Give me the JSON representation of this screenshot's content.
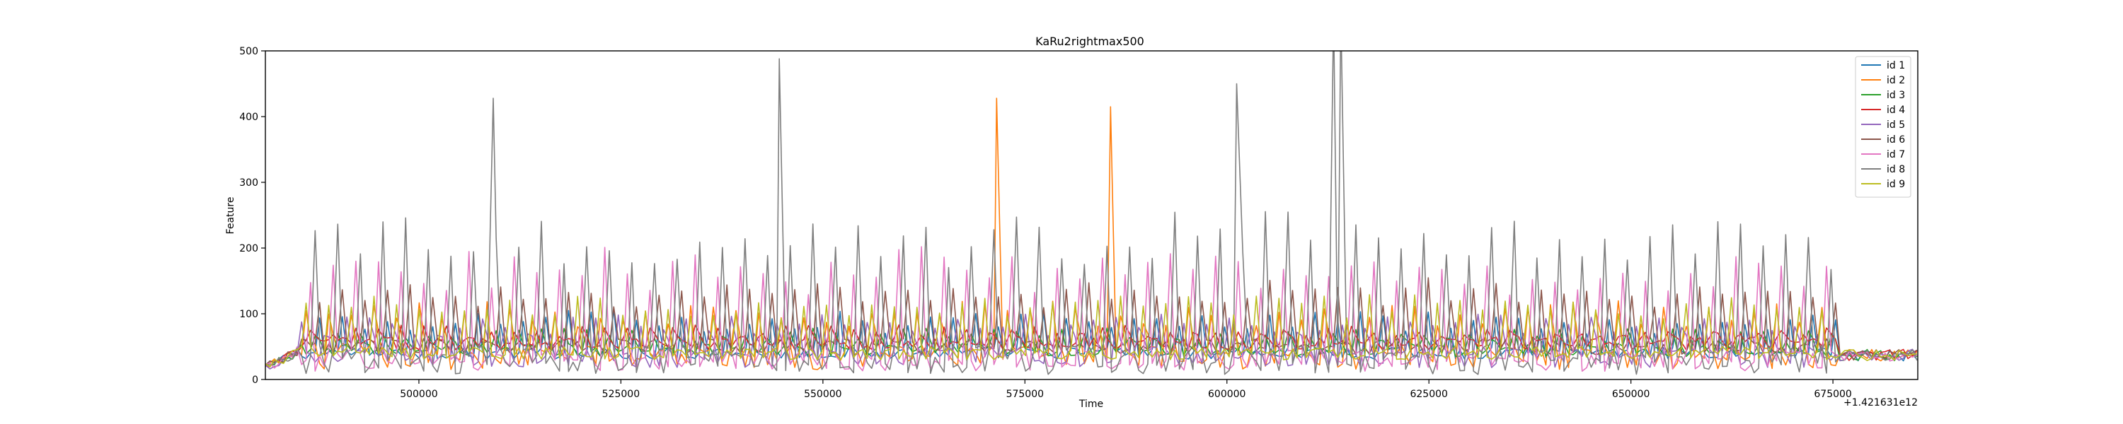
{
  "chart_data": {
    "type": "line",
    "title": "KaRu2rightmax500",
    "xlabel": "Time",
    "ylabel": "Feature",
    "x_offset_label": "+1.421631e12",
    "xlim": [
      481000,
      685500
    ],
    "ylim": [
      0,
      500
    ],
    "x_ticks": [
      500000,
      525000,
      550000,
      575000,
      600000,
      625000,
      650000,
      675000
    ],
    "x_tick_labels": [
      "500000",
      "525000",
      "550000",
      "575000",
      "600000",
      "625000",
      "650000",
      "675000"
    ],
    "y_ticks": [
      0,
      100,
      200,
      300,
      400,
      500
    ],
    "y_tick_labels": [
      "0",
      "100",
      "200",
      "300",
      "400",
      "500"
    ],
    "legend_position": "top-right",
    "active_range": [
      485000,
      675500
    ],
    "cycle_period": 2800,
    "spikes": [
      {
        "series": "id 8",
        "x": 509200,
        "y": 428
      },
      {
        "series": "id 8",
        "x": 544600,
        "y": 488
      },
      {
        "series": "id 2",
        "x": 571500,
        "y": 428
      },
      {
        "series": "id 2",
        "x": 585600,
        "y": 415
      },
      {
        "series": "id 8",
        "x": 601200,
        "y": 450
      },
      {
        "series": "id 8",
        "x": 613200,
        "y": 500
      },
      {
        "series": "id 8",
        "x": 614100,
        "y": 500
      }
    ],
    "series": [
      {
        "name": "id 1",
        "color": "#1f77b4",
        "base": 40,
        "peak": 80,
        "phase": 0.0,
        "noise": 18
      },
      {
        "name": "id 2",
        "color": "#ff7f0e",
        "base": 35,
        "peak": 175,
        "phase": 0.55,
        "noise": 40
      },
      {
        "name": "id 3",
        "color": "#2ca02c",
        "base": 45,
        "peak": 95,
        "phase": 0.15,
        "noise": 20
      },
      {
        "name": "id 4",
        "color": "#d62728",
        "base": 55,
        "peak": 95,
        "phase": 0.35,
        "noise": 20
      },
      {
        "name": "id 5",
        "color": "#9467bd",
        "base": 35,
        "peak": 140,
        "phase": 0.75,
        "noise": 35
      },
      {
        "name": "id 6",
        "color": "#8c564b",
        "base": 50,
        "peak": 115,
        "phase": 0.05,
        "noise": 25
      },
      {
        "name": "id 7",
        "color": "#e377c2",
        "base": 30,
        "peak": 145,
        "phase": 0.45,
        "noise": 35
      },
      {
        "name": "id 8",
        "color": "#7f7f7f",
        "base": 30,
        "peak": 185,
        "phase": 0.25,
        "noise": 45
      },
      {
        "name": "id 9",
        "color": "#bcbd22",
        "base": 40,
        "peak": 100,
        "phase": 0.65,
        "noise": 20
      }
    ]
  }
}
